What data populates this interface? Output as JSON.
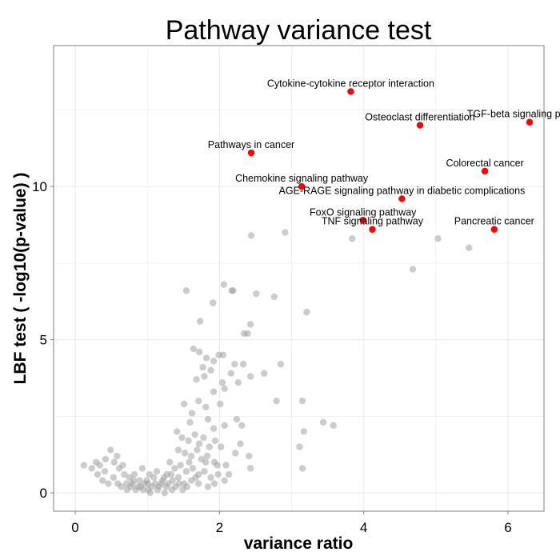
{
  "chart_data": {
    "type": "scatter",
    "title": "Pathway variance test",
    "xlabel": "variance ratio",
    "ylabel": "LBF test ( -log10(p-value) )",
    "xlim": [
      -0.3,
      6.5
    ],
    "ylim": [
      -0.6,
      14.6
    ],
    "x_ticks": [
      0,
      2,
      4,
      6
    ],
    "y_ticks": [
      0,
      5,
      10
    ],
    "grid": true,
    "legend": "none",
    "colors": {
      "highlight": "#ff0000",
      "background_points": "#999999",
      "panel_border": "#7f7f7f",
      "grid": "#ebebeb"
    },
    "highlighted": [
      {
        "label": "Cytokine-cytokine receptor interaction",
        "x": 3.82,
        "y": 13.1
      },
      {
        "label": "Osteoclast differentiation",
        "x": 4.78,
        "y": 12.0
      },
      {
        "label": "TGF-beta signaling pathway",
        "x": 6.3,
        "y": 12.1
      },
      {
        "label": "Pathways in cancer",
        "x": 2.44,
        "y": 11.1
      },
      {
        "label": "Colorectal cancer",
        "x": 5.68,
        "y": 10.5
      },
      {
        "label": "Chemokine signaling pathway",
        "x": 3.14,
        "y": 10.0
      },
      {
        "label": "AGE-RAGE signaling pathway in diabetic complications",
        "x": 4.53,
        "y": 9.6
      },
      {
        "label": "FoxO signaling pathway",
        "x": 3.99,
        "y": 8.9
      },
      {
        "label": "TNF signaling pathway",
        "x": 4.12,
        "y": 8.6
      },
      {
        "label": "Pancreatic cancer",
        "x": 5.81,
        "y": 8.6
      }
    ],
    "other_points": [
      [
        2.44,
        8.4
      ],
      [
        2.91,
        8.5
      ],
      [
        3.84,
        8.3
      ],
      [
        5.03,
        8.3
      ],
      [
        5.46,
        8.0
      ],
      [
        4.68,
        7.3
      ],
      [
        1.54,
        6.6
      ],
      [
        2.06,
        6.8
      ],
      [
        2.17,
        6.6
      ],
      [
        2.19,
        6.6
      ],
      [
        2.51,
        6.5
      ],
      [
        2.76,
        6.4
      ],
      [
        1.91,
        6.2
      ],
      [
        3.21,
        5.9
      ],
      [
        1.73,
        5.6
      ],
      [
        2.43,
        5.5
      ],
      [
        2.34,
        5.2
      ],
      [
        2.39,
        5.2
      ],
      [
        1.64,
        4.7
      ],
      [
        1.72,
        4.6
      ],
      [
        1.99,
        4.5
      ],
      [
        2.05,
        4.5
      ],
      [
        1.82,
        4.4
      ],
      [
        1.92,
        4.3
      ],
      [
        2.21,
        4.2
      ],
      [
        2.33,
        4.2
      ],
      [
        1.77,
        4.1
      ],
      [
        1.88,
        4.0
      ],
      [
        2.85,
        4.2
      ],
      [
        2.16,
        3.9
      ],
      [
        1.68,
        3.7
      ],
      [
        1.79,
        3.8
      ],
      [
        2.04,
        3.6
      ],
      [
        2.26,
        3.6
      ],
      [
        2.43,
        3.8
      ],
      [
        2.62,
        3.9
      ],
      [
        1.92,
        3.3
      ],
      [
        2.07,
        3.4
      ],
      [
        1.71,
        3.0
      ],
      [
        2.01,
        2.9
      ],
      [
        1.81,
        2.8
      ],
      [
        1.51,
        2.9
      ],
      [
        1.62,
        2.6
      ],
      [
        1.59,
        2.3
      ],
      [
        1.84,
        2.4
      ],
      [
        1.92,
        2.1
      ],
      [
        2.07,
        2.2
      ],
      [
        2.24,
        2.4
      ],
      [
        2.31,
        2.2
      ],
      [
        2.79,
        3.0
      ],
      [
        3.15,
        3.0
      ],
      [
        3.44,
        2.3
      ],
      [
        3.58,
        2.2
      ],
      [
        3.11,
        1.5
      ],
      [
        3.17,
        2.0
      ],
      [
        1.41,
        2.0
      ],
      [
        1.48,
        1.8
      ],
      [
        1.57,
        1.7
      ],
      [
        1.66,
        1.9
      ],
      [
        1.72,
        1.6
      ],
      [
        1.78,
        1.8
      ],
      [
        1.86,
        1.5
      ],
      [
        1.94,
        1.7
      ],
      [
        2.02,
        1.5
      ],
      [
        1.43,
        1.4
      ],
      [
        1.52,
        1.3
      ],
      [
        1.61,
        1.2
      ],
      [
        1.69,
        1.4
      ],
      [
        1.75,
        1.1
      ],
      [
        1.83,
        1.2
      ],
      [
        1.93,
        1.0
      ],
      [
        2.09,
        0.9
      ],
      [
        2.22,
        1.3
      ],
      [
        2.29,
        1.6
      ],
      [
        2.41,
        1.2
      ],
      [
        2.43,
        0.8
      ],
      [
        3.15,
        0.8
      ],
      [
        1.31,
        1.0
      ],
      [
        1.38,
        0.8
      ],
      [
        1.46,
        0.9
      ],
      [
        1.54,
        0.7
      ],
      [
        1.63,
        0.8
      ],
      [
        1.71,
        0.6
      ],
      [
        1.79,
        0.7
      ],
      [
        1.88,
        0.5
      ],
      [
        1.98,
        0.6
      ],
      [
        2.07,
        0.4
      ],
      [
        1.27,
        0.6
      ],
      [
        1.35,
        0.4
      ],
      [
        1.43,
        0.5
      ],
      [
        1.51,
        0.3
      ],
      [
        1.61,
        0.4
      ],
      [
        1.71,
        0.3
      ],
      [
        1.84,
        0.2
      ],
      [
        1.93,
        0.3
      ],
      [
        0.12,
        0.9
      ],
      [
        0.23,
        0.8
      ],
      [
        0.29,
        1.0
      ],
      [
        0.34,
        0.9
      ],
      [
        0.41,
        0.7
      ],
      [
        0.49,
        1.4
      ],
      [
        0.54,
        1.0
      ],
      [
        0.61,
        0.8
      ],
      [
        0.68,
        0.6
      ],
      [
        0.75,
        0.5
      ],
      [
        0.82,
        0.6
      ],
      [
        0.89,
        0.4
      ],
      [
        0.31,
        0.6
      ],
      [
        0.38,
        0.4
      ],
      [
        0.46,
        0.3
      ],
      [
        0.53,
        0.5
      ],
      [
        0.59,
        0.3
      ],
      [
        0.64,
        0.2
      ],
      [
        0.71,
        0.3
      ],
      [
        0.77,
        0.2
      ],
      [
        0.84,
        0.1
      ],
      [
        0.91,
        0.2
      ],
      [
        0.96,
        0.3
      ],
      [
        1.01,
        0.1
      ],
      [
        1.06,
        0.2
      ],
      [
        1.11,
        0.3
      ],
      [
        1.16,
        0.2
      ],
      [
        1.21,
        0.4
      ],
      [
        1.26,
        0.2
      ],
      [
        0.72,
        0.1
      ],
      [
        0.79,
        0.3
      ],
      [
        0.87,
        0.2
      ],
      [
        0.94,
        0.1
      ],
      [
        0.99,
        0.4
      ],
      [
        1.04,
        0.0
      ],
      [
        1.09,
        0.5
      ],
      [
        1.14,
        0.1
      ],
      [
        1.19,
        0.3
      ],
      [
        1.24,
        0.0
      ],
      [
        1.29,
        0.3
      ],
      [
        1.34,
        0.1
      ],
      [
        1.39,
        0.2
      ],
      [
        1.44,
        0.3
      ],
      [
        1.49,
        0.1
      ],
      [
        1.55,
        0.2
      ],
      [
        1.03,
        0.6
      ],
      [
        1.13,
        0.7
      ],
      [
        1.23,
        0.5
      ],
      [
        1.33,
        0.6
      ],
      [
        0.66,
        0.9
      ],
      [
        0.93,
        0.8
      ],
      [
        0.58,
        1.2
      ],
      [
        0.42,
        1.1
      ],
      [
        1.81,
        1.0
      ],
      [
        1.97,
        0.9
      ],
      [
        1.58,
        1.0
      ],
      [
        2.13,
        0.6
      ],
      [
        1.67,
        0.5
      ],
      [
        0.81,
        0.4
      ],
      [
        1.01,
        0.3
      ]
    ]
  }
}
